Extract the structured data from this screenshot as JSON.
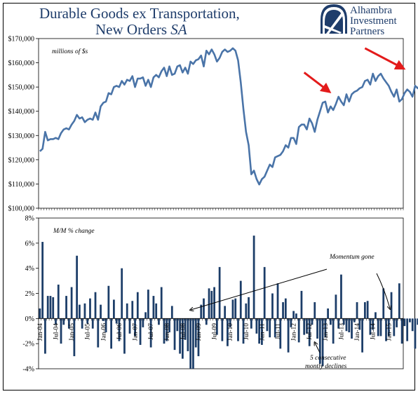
{
  "title_line1": "Durable Goods ex Transportation,",
  "title_line2_a": "New Orders",
  "title_line2_b": "SA",
  "logo": {
    "icon": "alhambra-logo-icon",
    "line1": "Alhambra",
    "line2": "Investment",
    "line3": "Partners"
  },
  "colors": {
    "line": "#4a74a8",
    "bar": "#1c3d68",
    "title": "#1f3d6b",
    "arrow": "#e31b1b",
    "border": "#000000"
  },
  "chart_data": [
    {
      "type": "line",
      "annotation": "millions of $s",
      "ylim": [
        100000,
        170000
      ],
      "yticks": [
        "$100,000",
        "$110,000",
        "$120,000",
        "$130,000",
        "$140,000",
        "$150,000",
        "$160,000",
        "$170,000"
      ],
      "ytick_values": [
        100000,
        110000,
        120000,
        130000,
        140000,
        150000,
        160000,
        170000
      ],
      "x_start": "Jan-04",
      "x_end": "Jun-15",
      "values": [
        123500,
        124500,
        131500,
        128000,
        128500,
        128500,
        129000,
        128500,
        131000,
        132500,
        133000,
        132500,
        134500,
        136000,
        138500,
        137000,
        137500,
        135500,
        136500,
        137000,
        136500,
        139500,
        136500,
        142000,
        143500,
        144000,
        147500,
        147000,
        150000,
        150500,
        150000,
        152500,
        151000,
        153000,
        152500,
        154500,
        150000,
        153500,
        153500,
        154000,
        150500,
        153000,
        150000,
        154000,
        155000,
        154000,
        156500,
        158000,
        154500,
        158500,
        155000,
        155500,
        158500,
        159000,
        156000,
        158000,
        155500,
        160500,
        159500,
        161000,
        161500,
        163000,
        158500,
        165000,
        163500,
        165500,
        163500,
        160500,
        162000,
        164500,
        165500,
        164500,
        165000,
        166000,
        165000,
        161000,
        152000,
        141000,
        131500,
        126000,
        114000,
        115500,
        112000,
        109800,
        112000,
        113000,
        115500,
        118000,
        117000,
        121000,
        121500,
        122000,
        123500,
        126000,
        125000,
        129000,
        129000,
        126500,
        133500,
        134500,
        134500,
        132500,
        137000,
        135000,
        131500,
        136500,
        140000,
        143500,
        144000,
        139500,
        142000,
        140500,
        143000,
        146000,
        144000,
        142500,
        147000,
        144000,
        147000,
        148000,
        148500,
        149500,
        150000,
        152500,
        153000,
        151000,
        155500,
        152500,
        154500,
        155500,
        153500,
        152000,
        150500,
        148000,
        146000,
        149000,
        144000,
        145000,
        147500,
        149000,
        148000,
        146000,
        150500,
        149500,
        151000,
        146000,
        148500,
        150000,
        150000,
        148500,
        148000,
        148500,
        149000,
        148500,
        150000,
        150500,
        149500,
        149500,
        152500,
        150500,
        157500,
        157000,
        159500,
        159500,
        159000,
        160500,
        164500,
        162500,
        161000,
        163500,
        164000,
        162500,
        160000,
        159500,
        159000,
        159000,
        158000,
        156000,
        157000,
        156500,
        157000,
        156500,
        157000
      ],
      "arrows": [
        {
          "from": [
            "May-12",
            156000
          ],
          "to": [
            "Feb-13",
            148500
          ]
        },
        {
          "from": [
            "Apr-14",
            166000
          ],
          "to": [
            "Jun-15",
            158000
          ]
        }
      ]
    },
    {
      "type": "bar",
      "annotation": "M/M % change",
      "ylim": [
        -4,
        8
      ],
      "yticks": [
        "-4%",
        "-2%",
        "0%",
        "2%",
        "4%",
        "6%",
        "8%"
      ],
      "ytick_values": [
        -4,
        -2,
        0,
        2,
        4,
        6,
        8
      ],
      "xtick_labels": [
        "Jan-04",
        "Jul-04",
        "Jan-05",
        "Jul-05",
        "Jan-06",
        "Jul-06",
        "Jan-07",
        "Jul-07",
        "Jan-08",
        "Jul-08",
        "Jan-09",
        "Jul-09",
        "Jan-10",
        "Jul-10",
        "Jan-11",
        "Jul-11",
        "Jan-12",
        "Jul-12",
        "Jan-13",
        "Jul-13",
        "Jan-14",
        "Jul-14",
        "Jan-15"
      ],
      "x_start": "Jan-04",
      "x_end": "Jun-15",
      "values": [
        0.8,
        6.1,
        -2.8,
        1.8,
        1.8,
        1.7,
        -0.5,
        2.7,
        -2.0,
        -0.5,
        1.8,
        -0.8,
        2.5,
        -3.0,
        5.0,
        1.1,
        -0.8,
        1.2,
        -0.4,
        1.6,
        -0.8,
        2.1,
        -2.3,
        1.1,
        -0.2,
        -1.1,
        2.6,
        -2.4,
        1.5,
        -0.4,
        -1.8,
        4.0,
        -2.8,
        1.2,
        -1.2,
        1.4,
        -1.4,
        2.1,
        -2.1,
        -0.7,
        0.5,
        2.3,
        -2.3,
        1.8,
        1.2,
        -0.5,
        2.5,
        -2.0,
        -1.8,
        -1.1,
        1.0,
        -2.5,
        -1.0,
        -2.8,
        -3.2,
        -1.7,
        -2.6,
        -4.0,
        -4.0,
        -2.3,
        -3.0,
        1.1,
        1.6,
        -0.5,
        2.4,
        2.2,
        2.5,
        -1.3,
        4.1,
        -1.8,
        1.0,
        -2.2,
        -0.7,
        1.5,
        1.6,
        -1.8,
        3.0,
        -2.0,
        1.2,
        1.7,
        -0.8,
        6.6,
        -1.2,
        -2.0,
        -2.1,
        4.1,
        -1.0,
        -1.5,
        2.0,
        -1.5,
        2.8,
        -2.4,
        1.3,
        1.6,
        -2.7,
        -0.7,
        0.6,
        0.4,
        -1.9,
        2.2,
        -1.3,
        -1.2,
        -2.2,
        -0.5,
        1.3,
        -1.6,
        -3.6,
        -3.8,
        -1.5,
        0.8,
        -0.5,
        -2.0,
        1.9,
        -0.8,
        3.5,
        -0.5,
        -1.0,
        -1.1,
        -1.6,
        -0.3,
        1.3,
        -0.9,
        -2.7,
        1.3,
        1.4,
        -1.3,
        -0.9,
        0.5,
        -1.4,
        -1.4,
        2.4,
        -1.8,
        -1.4,
        2.1,
        -1.4,
        -0.7,
        2.8,
        -2.0,
        -0.6,
        -1.8,
        -0.3,
        -1.0,
        -2.4,
        -0.5,
        -1.1,
        0.9,
        -2.2,
        0.2,
        0.2,
        2.4,
        -0.9,
        0.0,
        1.8,
        -1.6,
        1.0,
        -0.3,
        -1.4,
        3.5,
        -1.8,
        2.2,
        -0.4,
        -2.1,
        0.0,
        -0.4,
        2.9,
        -2.0,
        0.3,
        1.2,
        -0.7,
        -1.3,
        1.8,
        -0.9,
        -0.3,
        -0.5,
        -0.8,
        -1.2,
        -0.3,
        -0.4,
        -0.3,
        -1.8,
        0.6,
        0.4,
        -0.3,
        0.6,
        0.6
      ],
      "annotations": [
        {
          "text": "Momentum gone"
        },
        {
          "text_line1": "5 consecutive",
          "text_line2": "montly declines"
        }
      ]
    }
  ]
}
